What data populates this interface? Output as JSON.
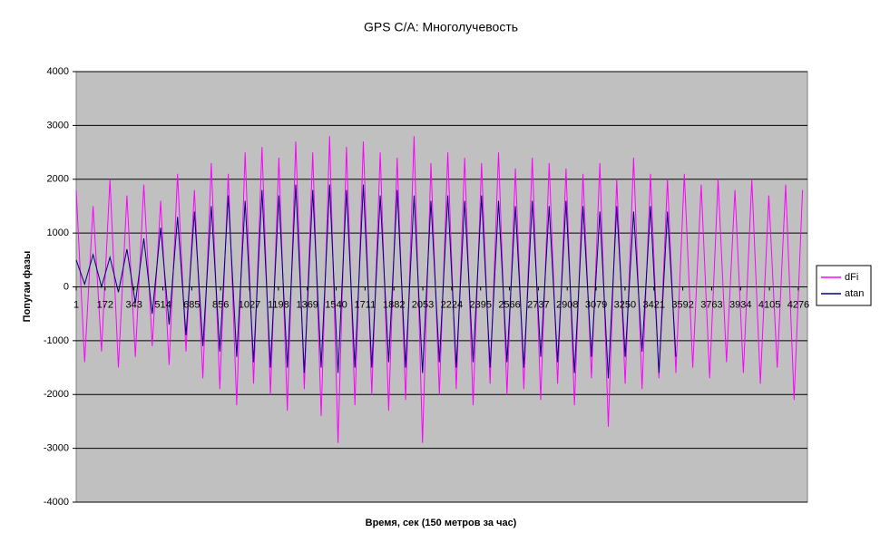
{
  "chart_data": {
    "type": "line",
    "title": "GPS C/A: Многолучевость",
    "x_label": "Время, сек (150 метров за час)",
    "y_label": "Попугаи фазы",
    "x": [
      1,
      51,
      101,
      151,
      201,
      251,
      301,
      351,
      401,
      451,
      501,
      551,
      601,
      651,
      701,
      751,
      801,
      851,
      901,
      951,
      1001,
      1051,
      1101,
      1151,
      1201,
      1251,
      1301,
      1351,
      1401,
      1451,
      1501,
      1551,
      1601,
      1651,
      1701,
      1751,
      1801,
      1851,
      1901,
      1951,
      2001,
      2051,
      2101,
      2151,
      2201,
      2251,
      2301,
      2351,
      2401,
      2451,
      2501,
      2551,
      2601,
      2651,
      2701,
      2751,
      2801,
      2851,
      2901,
      2951,
      3001,
      3051,
      3101,
      3151,
      3201,
      3251,
      3301,
      3351,
      3401,
      3451,
      3501,
      3551,
      3601,
      3651,
      3701,
      3751,
      3801,
      3851,
      3901,
      3951,
      4001,
      4051,
      4101,
      4151,
      4201,
      4251,
      4301
    ],
    "series": [
      {
        "name": "dFi",
        "color": "#ff00ff",
        "values": [
          1800,
          -1400,
          1500,
          -1200,
          2000,
          -1500,
          1700,
          -1300,
          1900,
          -1100,
          1600,
          -1450,
          2100,
          -1200,
          1800,
          -1700,
          2300,
          -1900,
          2100,
          -2200,
          2500,
          -1800,
          2600,
          -2000,
          2400,
          -2300,
          2700,
          -1900,
          2500,
          -2400,
          2800,
          -2900,
          2600,
          -2200,
          2700,
          -2000,
          2500,
          -2300,
          2400,
          -2100,
          2800,
          -2900,
          2300,
          -2000,
          2500,
          -1900,
          2400,
          -2200,
          2300,
          -1800,
          2500,
          -2000,
          2200,
          -1900,
          2400,
          -2100,
          2300,
          -1800,
          2200,
          -2200,
          2100,
          -1700,
          2300,
          -2600,
          2000,
          -1800,
          2400,
          -1900,
          2100,
          -1700,
          2000,
          -1600,
          2100,
          -1500,
          1900,
          -1700,
          2000,
          -1400,
          1800,
          -1600,
          2000,
          -1800,
          1700,
          -1500,
          1900,
          -2100,
          1800
        ]
      },
      {
        "name": "atan",
        "color": "#000080",
        "values": [
          500,
          50,
          600,
          0,
          550,
          -100,
          700,
          -300,
          900,
          -500,
          1100,
          -700,
          1300,
          -900,
          1400,
          -1100,
          1500,
          -1200,
          1700,
          -1300,
          1600,
          -1400,
          1800,
          -1500,
          1700,
          -1500,
          1900,
          -1600,
          1800,
          -1500,
          1900,
          -1600,
          1800,
          -1500,
          1900,
          -1500,
          1700,
          -1400,
          1800,
          -1500,
          1700,
          -1600,
          1600,
          -1400,
          1700,
          -1500,
          1600,
          -1400,
          1700,
          -1500,
          1600,
          -1400,
          1500,
          -1500,
          1600,
          -1300,
          1500,
          -1400,
          1600,
          -1600,
          1500,
          -1300,
          1400,
          -1700,
          1500,
          -1300,
          1400,
          -1200,
          1500,
          -1600,
          1400,
          -1300,
          null,
          null,
          null,
          null,
          null,
          null,
          null,
          null,
          null,
          null,
          null,
          null,
          null,
          null,
          null
        ]
      }
    ],
    "xlim": [
      1,
      4330
    ],
    "xticks": [
      1,
      172,
      343,
      514,
      685,
      856,
      1027,
      1198,
      1369,
      1540,
      1711,
      1882,
      2053,
      2224,
      2395,
      2566,
      2737,
      2908,
      3079,
      3250,
      3421,
      3592,
      3763,
      3934,
      4105,
      4276
    ],
    "ylim": [
      -4000,
      4000
    ],
    "yticks": [
      -4000,
      -3000,
      -2000,
      -1000,
      0,
      1000,
      2000,
      3000,
      4000
    ],
    "grid": true,
    "legend": "right"
  }
}
